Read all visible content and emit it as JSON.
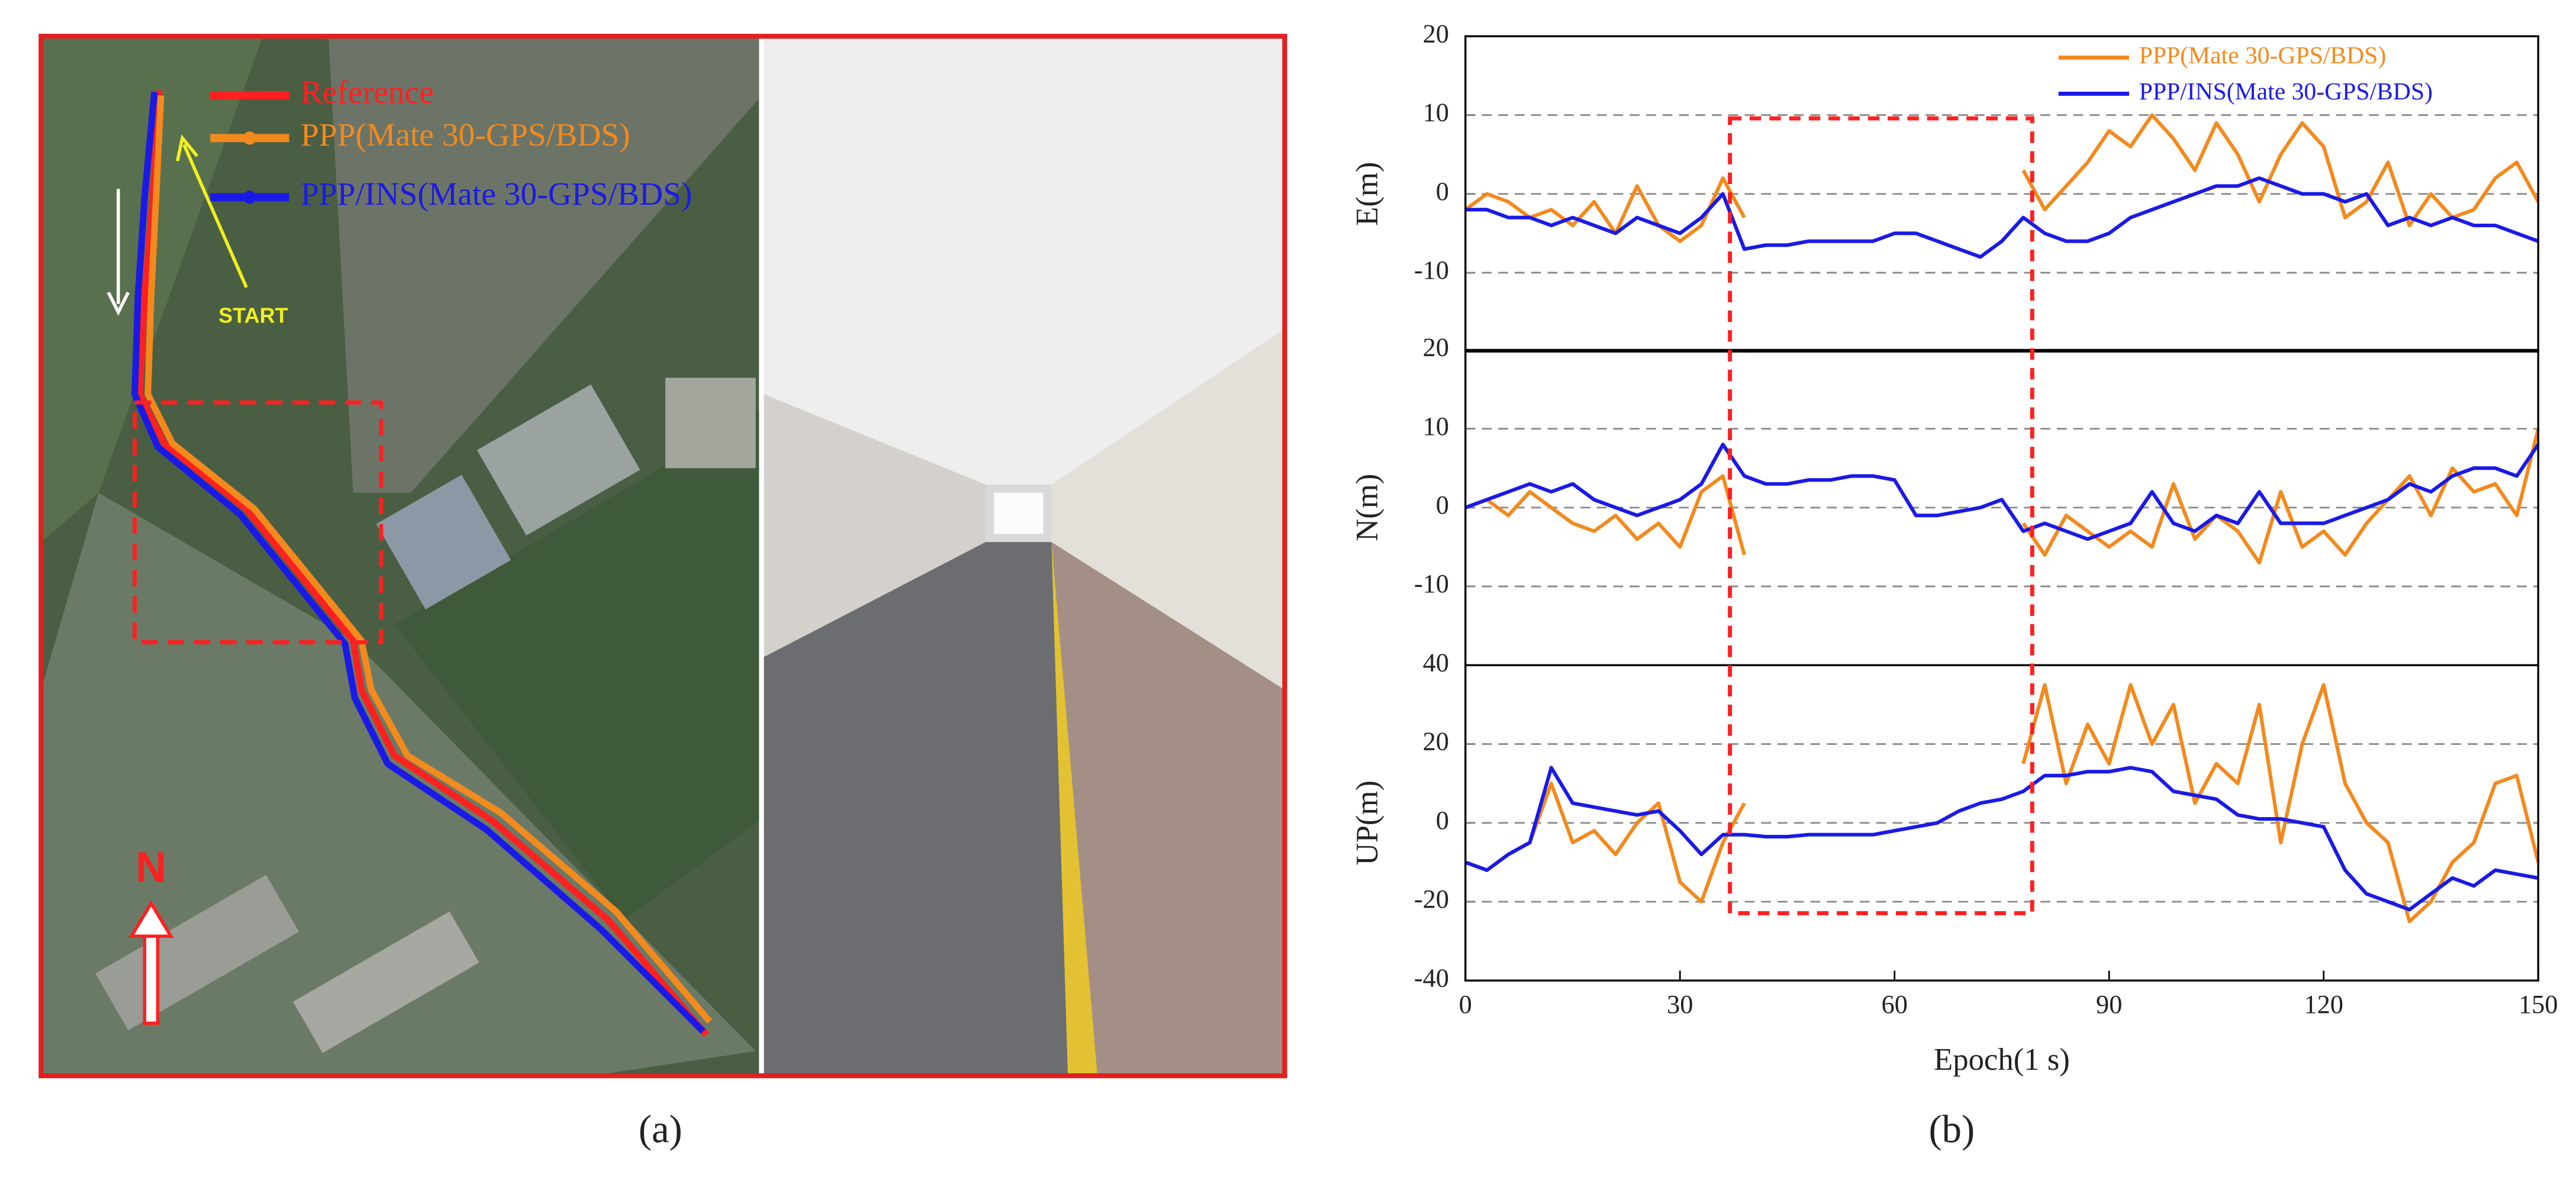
{
  "panel_a": {
    "legend": [
      {
        "label": "Reference",
        "color": "#ff2020"
      },
      {
        "label": "PPP(Mate 30-GPS/BDS)",
        "color": "#f28a1e"
      },
      {
        "label": "PPP/INS(Mate 30-GPS/BDS)",
        "color": "#1a1ae6"
      }
    ],
    "start": "START",
    "north": "N",
    "caption": "(a)"
  },
  "panel_b": {
    "caption": "(b)"
  },
  "chart_data": [
    {
      "type": "line",
      "ylabel": "E(m)",
      "xlim": [
        0,
        150
      ],
      "ylim": [
        -20,
        20
      ],
      "yticks": [
        -10,
        0,
        10,
        20
      ],
      "grid": true,
      "legend": "upper right",
      "x": [
        0,
        3,
        6,
        9,
        12,
        15,
        18,
        21,
        24,
        27,
        30,
        33,
        36,
        39,
        42,
        45,
        48,
        51,
        54,
        57,
        60,
        63,
        66,
        69,
        72,
        75,
        78,
        81,
        84,
        87,
        90,
        93,
        96,
        99,
        102,
        105,
        108,
        111,
        114,
        117,
        120,
        123,
        126,
        129,
        132,
        135,
        138,
        141,
        144,
        147,
        150
      ],
      "series": [
        {
          "name": "PPP(Mate 30-GPS/BDS)",
          "color": "#f28a1e",
          "values": [
            -2,
            0,
            -1,
            -3,
            -2,
            -4,
            -1,
            -5,
            1,
            -4,
            -6,
            -4,
            2,
            -3,
            null,
            null,
            null,
            null,
            null,
            null,
            null,
            null,
            null,
            null,
            null,
            null,
            3,
            -2,
            1,
            4,
            8,
            6,
            10,
            7,
            3,
            9,
            5,
            -1,
            5,
            9,
            6,
            -3,
            -1,
            4,
            -4,
            0,
            -3,
            -2,
            2,
            4,
            -1
          ]
        },
        {
          "name": "PPP/INS(Mate 30-GPS/BDS)",
          "color": "#1a1ae6",
          "values": [
            -2,
            -2,
            -3,
            -3,
            -4,
            -3,
            -4,
            -5,
            -3,
            -4,
            -5,
            -3,
            0,
            -7,
            -6.5,
            -6.5,
            -6,
            -6,
            -6,
            -6,
            -5,
            -5,
            -6,
            -7,
            -8,
            -6,
            -3,
            -5,
            -6,
            -6,
            -5,
            -3,
            -2,
            -1,
            0,
            1,
            1,
            2,
            1,
            0,
            0,
            -1,
            0,
            -4,
            -3,
            -4,
            -3,
            -4,
            -4,
            -5,
            -6
          ]
        }
      ]
    },
    {
      "type": "line",
      "ylabel": "N(m)",
      "xlim": [
        0,
        150
      ],
      "ylim": [
        -20,
        20
      ],
      "yticks": [
        -10,
        0,
        10,
        20
      ],
      "grid": true,
      "x": [
        0,
        3,
        6,
        9,
        12,
        15,
        18,
        21,
        24,
        27,
        30,
        33,
        36,
        39,
        42,
        45,
        48,
        51,
        54,
        57,
        60,
        63,
        66,
        69,
        72,
        75,
        78,
        81,
        84,
        87,
        90,
        93,
        96,
        99,
        102,
        105,
        108,
        111,
        114,
        117,
        120,
        123,
        126,
        129,
        132,
        135,
        138,
        141,
        144,
        147,
        150
      ],
      "series": [
        {
          "color": "#f28a1e",
          "values": [
            0,
            1,
            -1,
            2,
            0,
            -2,
            -3,
            -1,
            -4,
            -2,
            -5,
            2,
            4,
            -6,
            null,
            null,
            null,
            null,
            null,
            null,
            null,
            null,
            null,
            null,
            null,
            null,
            -2,
            -6,
            -1,
            -3,
            -5,
            -3,
            -5,
            3,
            -4,
            -1,
            -3,
            -7,
            2,
            -5,
            -3,
            -6,
            -2,
            1,
            4,
            -1,
            5,
            2,
            3,
            -1,
            10
          ]
        },
        {
          "color": "#1a1ae6",
          "values": [
            0,
            1,
            2,
            3,
            2,
            3,
            1,
            0,
            -1,
            0,
            1,
            3,
            8,
            4,
            3,
            3,
            3.5,
            3.5,
            4,
            4,
            3.5,
            -1,
            -1,
            -0.5,
            0,
            1,
            -3,
            -2,
            -3,
            -4,
            -3,
            -2,
            2,
            -2,
            -3,
            -1,
            -2,
            2,
            -2,
            -2,
            -2,
            -1,
            0,
            1,
            3,
            2,
            4,
            5,
            5,
            4,
            8
          ]
        }
      ]
    },
    {
      "type": "line",
      "ylabel": "UP(m)",
      "xlabel": "Epoch(1 s)",
      "xlim": [
        0,
        150
      ],
      "xticks": [
        0,
        30,
        60,
        90,
        120,
        150
      ],
      "ylim": [
        -40,
        40
      ],
      "yticks": [
        -40,
        -20,
        0,
        20,
        40
      ],
      "grid": true,
      "x": [
        0,
        3,
        6,
        9,
        12,
        15,
        18,
        21,
        24,
        27,
        30,
        33,
        36,
        39,
        42,
        45,
        48,
        51,
        54,
        57,
        60,
        63,
        66,
        69,
        72,
        75,
        78,
        81,
        84,
        87,
        90,
        93,
        96,
        99,
        102,
        105,
        108,
        111,
        114,
        117,
        120,
        123,
        126,
        129,
        132,
        135,
        138,
        141,
        144,
        147,
        150
      ],
      "series": [
        {
          "color": "#f28a1e",
          "values": [
            -10,
            -12,
            -8,
            -5,
            10,
            -5,
            -2,
            -8,
            0,
            5,
            -15,
            -20,
            -5,
            5,
            null,
            null,
            null,
            null,
            null,
            null,
            null,
            null,
            null,
            null,
            null,
            null,
            15,
            35,
            10,
            25,
            15,
            35,
            20,
            30,
            5,
            15,
            10,
            30,
            -5,
            20,
            35,
            10,
            0,
            -5,
            -25,
            -20,
            -10,
            -5,
            10,
            12,
            -10
          ]
        },
        {
          "color": "#1a1ae6",
          "values": [
            -10,
            -12,
            -8,
            -5,
            14,
            5,
            4,
            3,
            2,
            3,
            -2,
            -8,
            -3,
            -3,
            -3.5,
            -3.5,
            -3,
            -3,
            -3,
            -3,
            -2,
            -1,
            0,
            3,
            5,
            6,
            8,
            12,
            12,
            13,
            13,
            14,
            13,
            8,
            7,
            6,
            2,
            1,
            1,
            0,
            -1,
            -12,
            -18,
            -20,
            -22,
            -18,
            -14,
            -16,
            -12,
            -13,
            -14
          ]
        }
      ]
    }
  ]
}
